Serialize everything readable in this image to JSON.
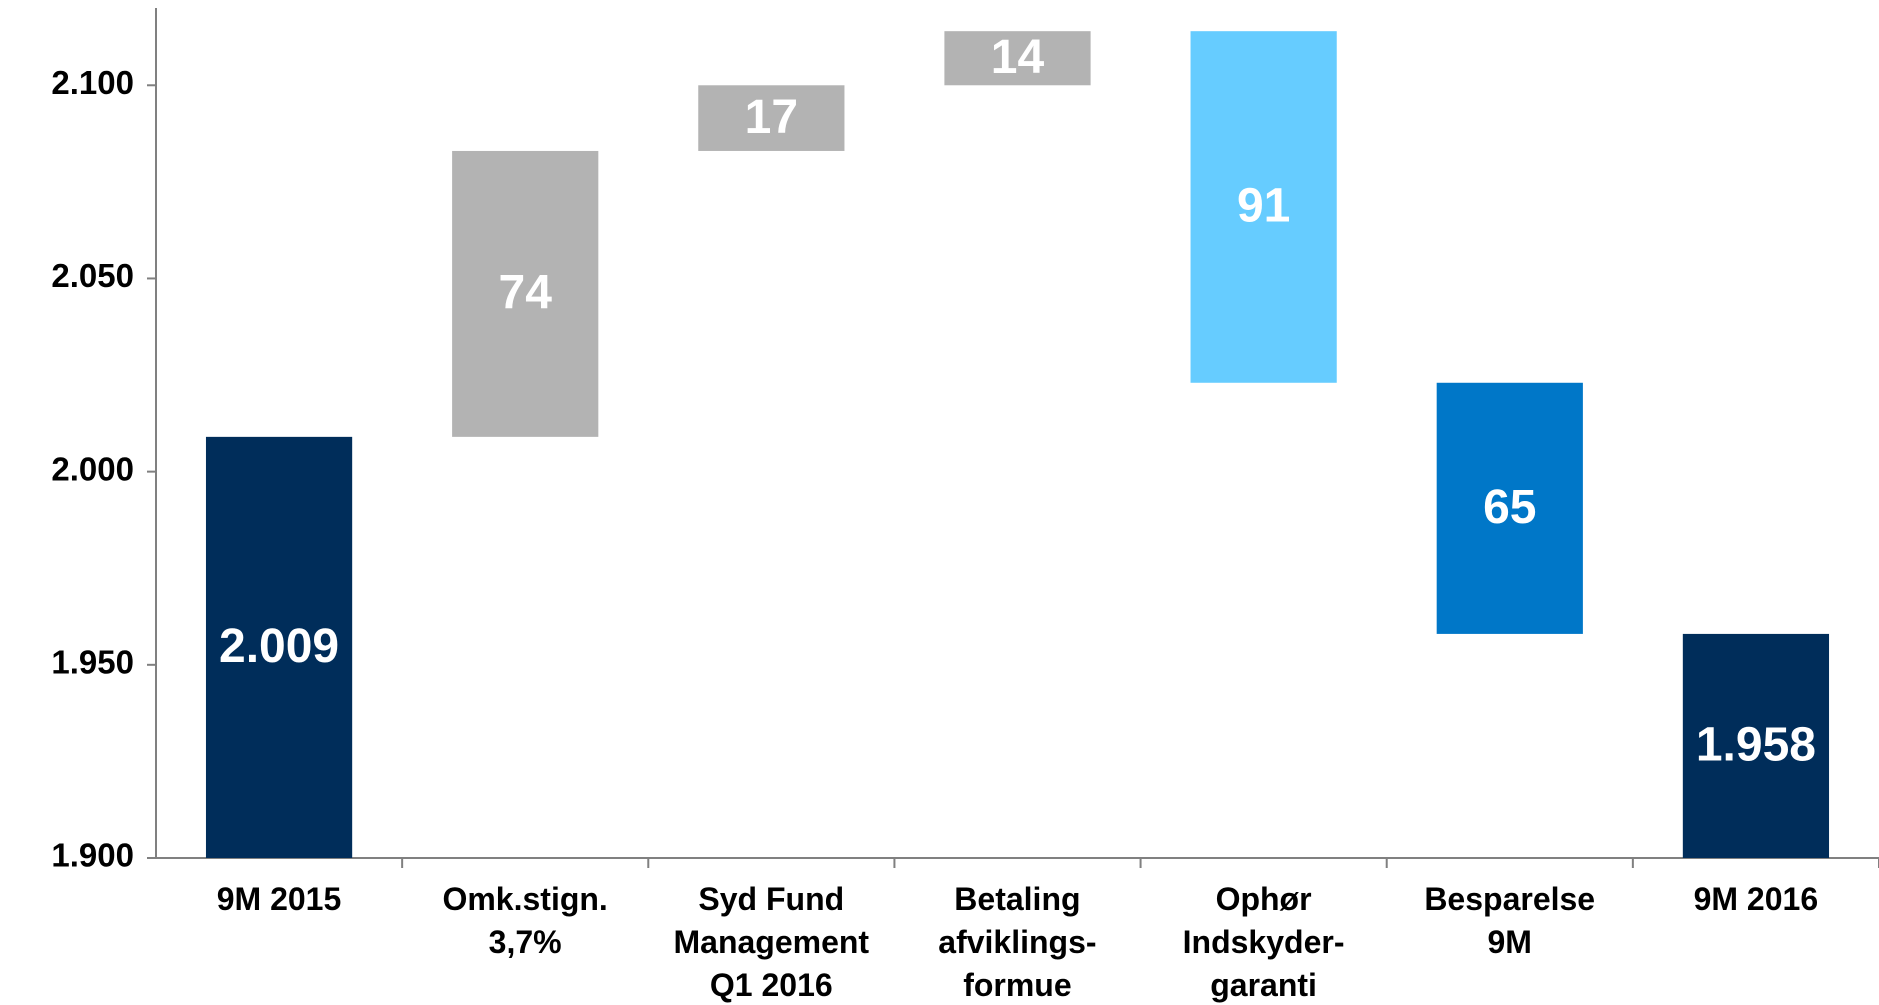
{
  "chart_data": {
    "type": "waterfall",
    "categories": [
      "9M 2015",
      "Omk.stign.\n3,7%",
      "Syd Fund\nManagement\nQ1 2016",
      "Betaling\nafviklings-\nformue",
      "Ophør\nIndskyder-\ngaranti",
      "Besparelse\n9M",
      "9M 2016"
    ],
    "values": [
      2009,
      74,
      17,
      14,
      -91,
      -65,
      1958
    ],
    "value_labels": [
      "2.009",
      "74",
      "17",
      "14",
      "91",
      "65",
      "1.958"
    ],
    "measure": [
      "total",
      "relative",
      "relative",
      "relative",
      "relative",
      "relative",
      "total"
    ],
    "colors": [
      "#002d5a",
      "#b3b3b3",
      "#b3b3b3",
      "#b3b3b3",
      "#66ccff",
      "#0077c8",
      "#002d5a"
    ],
    "ylim": [
      1900,
      2120
    ],
    "yticks": [
      {
        "value": 1900,
        "label": "1.900"
      },
      {
        "value": 1950,
        "label": "1.950"
      },
      {
        "value": 2000,
        "label": "2.000"
      },
      {
        "value": 2050,
        "label": "2.050"
      },
      {
        "value": 2100,
        "label": "2.100"
      }
    ],
    "grid": false
  }
}
